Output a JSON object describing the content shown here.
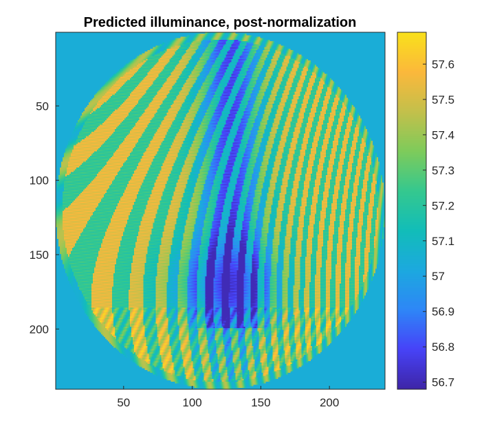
{
  "colors": {
    "background": "#ffffff",
    "axis": "#262626",
    "outside_fill": "#12a4cc",
    "colormap": [
      "#3e26a8",
      "#4743f8",
      "#2e87f7",
      "#1ca9df",
      "#12bdb9",
      "#35c88f",
      "#7ecb5b",
      "#c3c04b",
      "#fbb83c",
      "#f9e01c"
    ]
  },
  "chart_data": {
    "type": "heatmap",
    "title": "Predicted illuminance, post-normalization",
    "xlabel": "",
    "ylabel": "",
    "xlim": [
      0.5,
      240.5
    ],
    "ylim": [
      0.5,
      240.5
    ],
    "y_reversed": true,
    "grid": false,
    "x_ticks": [
      50,
      100,
      150,
      200
    ],
    "y_ticks": [
      50,
      100,
      150,
      200
    ],
    "colorbar": {
      "location": "right",
      "range": [
        56.68,
        57.69
      ],
      "ticks": [
        "57.6",
        "57.5",
        "57.4",
        "57.3",
        "57.2",
        "57.1",
        "57",
        "56.9",
        "56.8",
        "56.7"
      ]
    },
    "description_values": {
      "circular_region_center": [
        120.5,
        120.5
      ],
      "circular_region_radius": 120,
      "outside_value": 57.04
    }
  }
}
